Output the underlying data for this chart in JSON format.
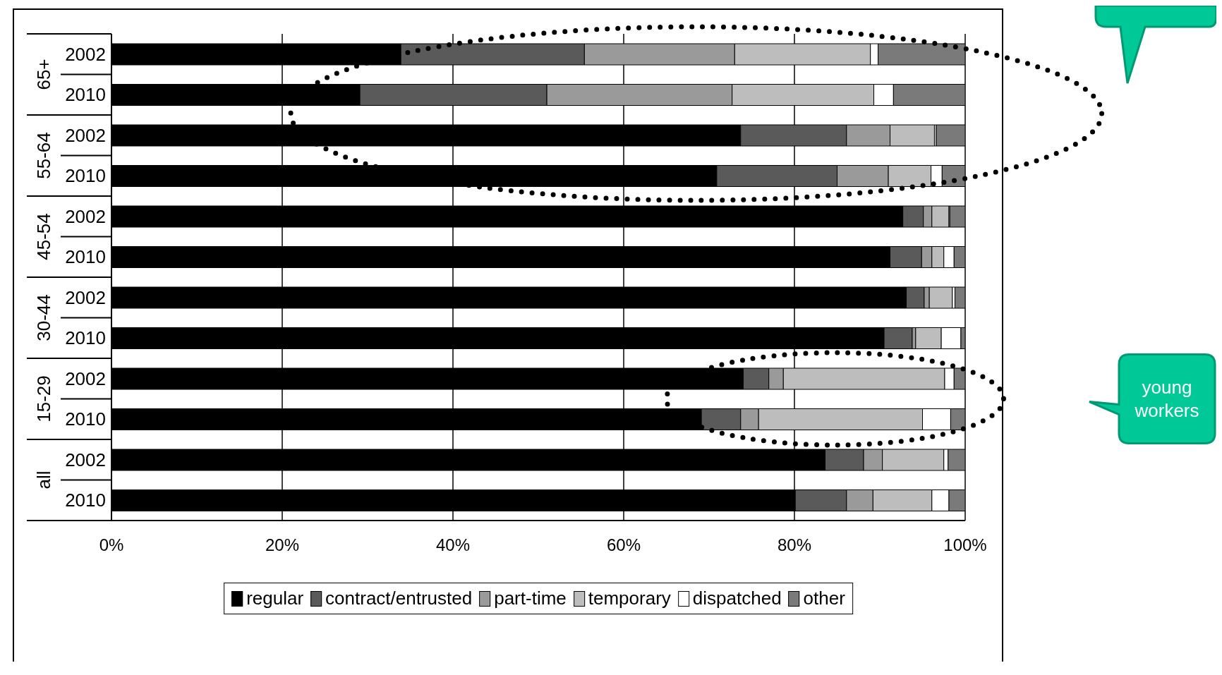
{
  "chart_data": {
    "type": "bar",
    "orientation": "horizontal",
    "stacked": true,
    "categories": [
      "2002",
      "2010",
      "2002",
      "2010",
      "2002",
      "2010",
      "2002",
      "2010",
      "2002",
      "2010",
      "2002",
      "2010"
    ],
    "series": [
      {
        "name": "regular",
        "color": "#000000",
        "values": [
          33.9,
          29.1,
          73.7,
          70.9,
          92.7,
          91.2,
          93.1,
          90.5,
          74.0,
          69.1,
          83.6,
          80.1
        ]
      },
      {
        "name": "contract/entrusted",
        "color": "#5a5a5a",
        "values": [
          21.5,
          21.9,
          12.4,
          14.1,
          2.4,
          3.7,
          2.1,
          3.3,
          3.0,
          4.6,
          4.5,
          6.0
        ]
      },
      {
        "name": "part-time",
        "color": "#9a9a9a",
        "values": [
          17.6,
          21.7,
          5.1,
          6.0,
          1.0,
          1.2,
          0.6,
          0.4,
          1.7,
          2.1,
          2.2,
          3.1
        ]
      },
      {
        "name": "temporary",
        "color": "#bdbdbd",
        "values": [
          15.9,
          16.6,
          5.2,
          5.0,
          2.0,
          1.4,
          2.7,
          3.0,
          18.9,
          19.2,
          7.2,
          6.9
        ]
      },
      {
        "name": "dispatched",
        "color": "#ffffff",
        "values": [
          0.9,
          2.3,
          0.2,
          1.3,
          0.1,
          1.2,
          0.3,
          2.3,
          1.1,
          3.3,
          0.5,
          2.0
        ]
      },
      {
        "name": "other",
        "color": "#7a7a7a",
        "values": [
          10.2,
          8.4,
          3.4,
          2.7,
          1.8,
          1.3,
          1.2,
          0.5,
          1.3,
          1.7,
          2.0,
          1.9
        ]
      }
    ],
    "xlim": [
      0,
      100
    ],
    "xticks": [
      {
        "value": 0,
        "label": "0%"
      },
      {
        "value": 20,
        "label": "20%"
      },
      {
        "value": 40,
        "label": "40%"
      },
      {
        "value": 60,
        "label": "60%"
      },
      {
        "value": 80,
        "label": "80%"
      },
      {
        "value": 100,
        "label": "100%"
      }
    ],
    "grid": "x",
    "legend": "bottom",
    "annotations": [
      "65+",
      "55-64",
      "45-54",
      "30-44",
      "15-29",
      "all",
      "young workers"
    ]
  }
}
